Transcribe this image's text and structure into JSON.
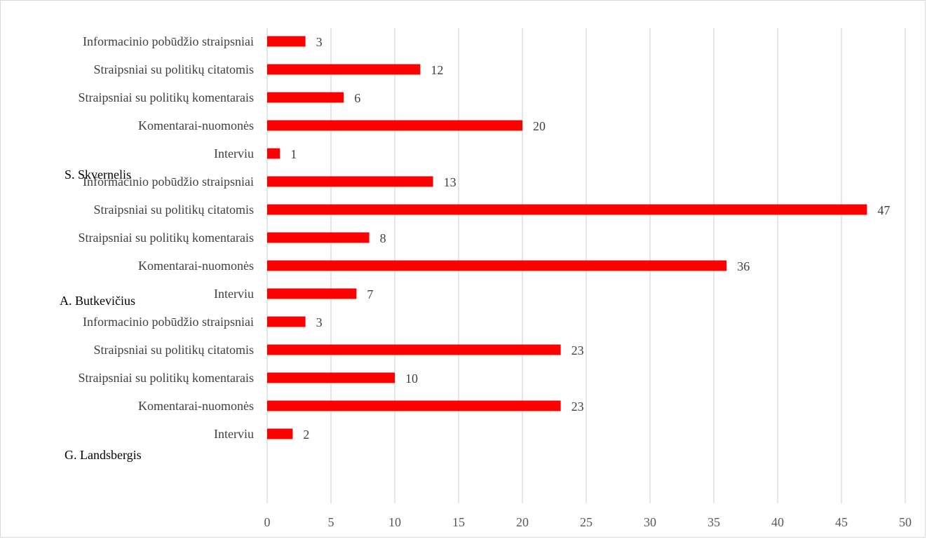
{
  "chart_data": {
    "type": "bar",
    "orientation": "horizontal",
    "title": "",
    "xlabel": "",
    "ylabel": "",
    "xlim": [
      0,
      50
    ],
    "x_ticks": [
      0,
      5,
      10,
      15,
      20,
      25,
      30,
      35,
      40,
      45,
      50
    ],
    "grid": "vertical",
    "bar_color": "#ff0000",
    "data_labels": true,
    "groups": [
      {
        "name": "S. Skvernelis",
        "categories": [
          "Informacinio pobūdžio straipsniai",
          "Straipsniai su politikų citatomis",
          "Straipsniai su politikų komentarais",
          "Komentarai-nuomonės",
          "Interviu"
        ],
        "values": [
          3,
          12,
          6,
          20,
          1
        ]
      },
      {
        "name": "A. Butkevičius",
        "categories": [
          "Informacinio pobūdžio straipsniai",
          "Straipsniai su politikų citatomis",
          "Straipsniai su politikų komentarais",
          "Komentarai-nuomonės",
          "Interviu"
        ],
        "values": [
          13,
          47,
          8,
          36,
          7
        ]
      },
      {
        "name": "G. Landsbergis",
        "categories": [
          "Informacinio pobūdžio straipsniai",
          "Straipsniai su politikų citatomis",
          "Straipsniai su politikų komentarais",
          "Komentarai-nuomonės",
          "Interviu"
        ],
        "values": [
          3,
          23,
          10,
          23,
          2
        ]
      }
    ]
  }
}
